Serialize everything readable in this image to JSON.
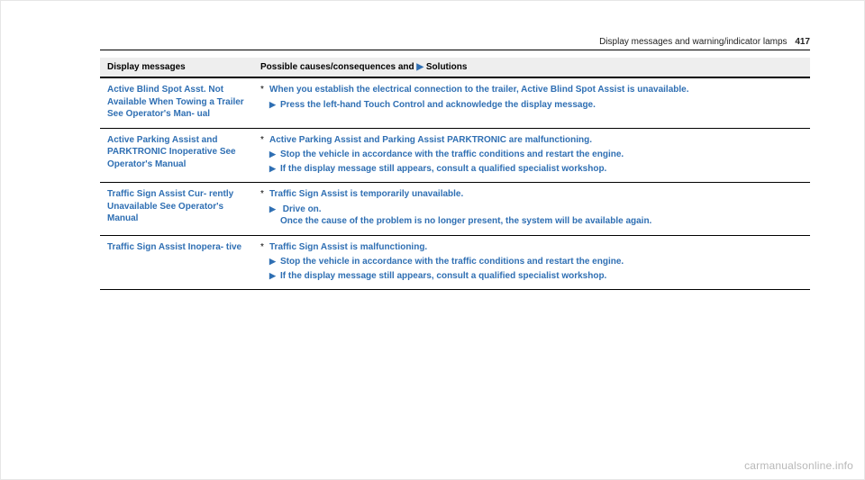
{
  "page": {
    "section_title": "Display messages and warning/indicator lamps",
    "page_number": "417"
  },
  "table": {
    "head_left": "Display messages",
    "head_right_a": "Possible causes/consequences and ",
    "head_right_b": "Solutions"
  },
  "rows": [
    {
      "msg": "Active Blind Spot Asst. Not Available When Towing a Trailer See Operator's Man- ual",
      "cause": "When you establish the electrical connection to the trailer, Active Blind Spot Assist is unavailable.",
      "solutions": [
        {
          "text": "Press the left-hand Touch Control and acknowledge the display message."
        }
      ]
    },
    {
      "msg": "Active Parking Assist and PARKTRONIC Inoperative See Operator's Manual",
      "cause": "Active Parking Assist and Parking Assist PARKTRONIC are malfunctioning.",
      "solutions": [
        {
          "text": "Stop the vehicle in accordance with the traffic conditions and restart the engine."
        },
        {
          "text": "If the display message still appears, consult a qualified specialist workshop."
        }
      ]
    },
    {
      "msg": "Traffic Sign Assist Cur- rently Unavailable See Operator's Manual",
      "cause": "Traffic Sign Assist is temporarily unavailable.",
      "solutions": [
        {
          "text": "Drive on.",
          "sub": "Once the cause of the problem is no longer present, the system will be available again."
        }
      ]
    },
    {
      "msg": "Traffic Sign Assist Inopera- tive",
      "cause": "Traffic Sign Assist is malfunctioning.",
      "solutions": [
        {
          "text": "Stop the vehicle in accordance with the traffic conditions and restart the engine."
        },
        {
          "text": "If the display message still appears, consult a qualified specialist workshop."
        }
      ]
    }
  ],
  "watermark": "carmanualsonline.info"
}
